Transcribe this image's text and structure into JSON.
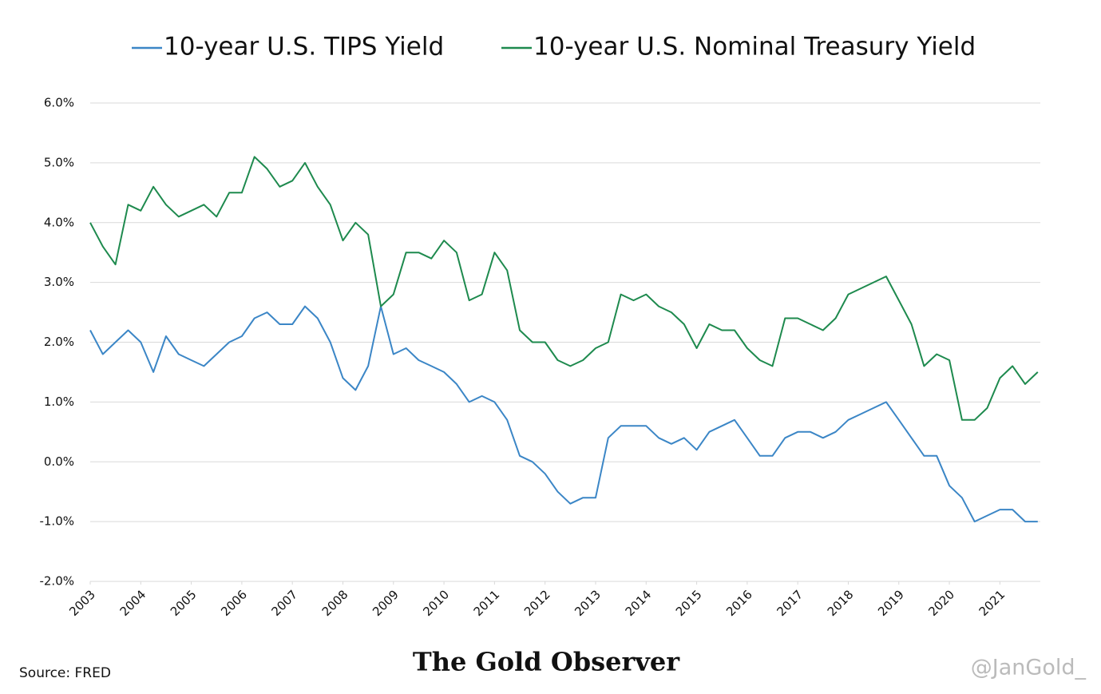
{
  "chart_data": {
    "type": "line",
    "x": [
      2003,
      2003.25,
      2003.5,
      2003.75,
      2004,
      2004.25,
      2004.5,
      2004.75,
      2005,
      2005.25,
      2005.5,
      2005.75,
      2006,
      2006.25,
      2006.5,
      2006.75,
      2007,
      2007.25,
      2007.5,
      2007.75,
      2008,
      2008.25,
      2008.5,
      2008.75,
      2009,
      2009.25,
      2009.5,
      2009.75,
      2010,
      2010.25,
      2010.5,
      2010.75,
      2011,
      2011.25,
      2011.5,
      2011.75,
      2012,
      2012.25,
      2012.5,
      2012.75,
      2013,
      2013.25,
      2013.5,
      2013.75,
      2014,
      2014.25,
      2014.5,
      2014.75,
      2015,
      2015.25,
      2015.5,
      2015.75,
      2016,
      2016.25,
      2016.5,
      2016.75,
      2017,
      2017.25,
      2017.5,
      2017.75,
      2018,
      2018.25,
      2018.5,
      2018.75,
      2019,
      2019.25,
      2019.5,
      2019.75,
      2020,
      2020.25,
      2020.5,
      2020.75,
      2021,
      2021.25,
      2021.5,
      2021.75
    ],
    "series": [
      {
        "name": "10-year U.S. TIPS Yield",
        "color": "#3b86c6",
        "values": [
          2.2,
          1.8,
          2.0,
          2.2,
          2.0,
          1.5,
          2.1,
          1.8,
          1.7,
          1.6,
          1.8,
          2.0,
          2.1,
          2.4,
          2.5,
          2.3,
          2.3,
          2.6,
          2.4,
          2.0,
          1.4,
          1.2,
          1.6,
          2.6,
          1.8,
          1.9,
          1.7,
          1.6,
          1.5,
          1.3,
          1.0,
          1.1,
          1.0,
          0.7,
          0.1,
          0.0,
          -0.2,
          -0.5,
          -0.7,
          -0.6,
          -0.6,
          0.4,
          0.6,
          0.6,
          0.6,
          0.4,
          0.3,
          0.4,
          0.2,
          0.5,
          0.6,
          0.7,
          0.4,
          0.1,
          0.1,
          0.4,
          0.5,
          0.5,
          0.4,
          0.5,
          0.7,
          0.8,
          0.9,
          1.0,
          0.7,
          0.4,
          0.1,
          0.1,
          -0.4,
          -0.6,
          -1.0,
          -0.9,
          -0.8,
          -0.8,
          -1.0,
          -1.0
        ]
      },
      {
        "name": "10-year U.S. Nominal Treasury Yield",
        "color": "#1e8a4e",
        "values": [
          4.0,
          3.6,
          3.3,
          4.3,
          4.2,
          4.6,
          4.3,
          4.1,
          4.2,
          4.3,
          4.1,
          4.5,
          4.5,
          5.1,
          4.9,
          4.6,
          4.7,
          5.0,
          4.6,
          4.3,
          3.7,
          4.0,
          3.8,
          2.6,
          2.8,
          3.5,
          3.5,
          3.4,
          3.7,
          3.5,
          2.7,
          2.8,
          3.5,
          3.2,
          2.2,
          2.0,
          2.0,
          1.7,
          1.6,
          1.7,
          1.9,
          2.0,
          2.8,
          2.7,
          2.8,
          2.6,
          2.5,
          2.3,
          1.9,
          2.3,
          2.2,
          2.2,
          1.9,
          1.7,
          1.6,
          2.4,
          2.4,
          2.3,
          2.2,
          2.4,
          2.8,
          2.9,
          3.0,
          3.1,
          2.7,
          2.3,
          1.6,
          1.8,
          1.7,
          0.7,
          0.7,
          0.9,
          1.4,
          1.6,
          1.3,
          1.5
        ]
      }
    ],
    "xlim": [
      2003,
      2021.8
    ],
    "xticks": [
      2003,
      2004,
      2005,
      2006,
      2007,
      2008,
      2009,
      2010,
      2011,
      2012,
      2013,
      2014,
      2015,
      2016,
      2017,
      2018,
      2019,
      2020,
      2021
    ],
    "ylim": [
      -2,
      6
    ],
    "yticks": [
      {
        "value": -2,
        "label": "-2.0%"
      },
      {
        "value": -1,
        "label": "-1.0%"
      },
      {
        "value": 0,
        "label": "0.0%"
      },
      {
        "value": 1,
        "label": "1.0%"
      },
      {
        "value": 2,
        "label": "2.0%"
      },
      {
        "value": 3,
        "label": "3.0%"
      },
      {
        "value": 4,
        "label": "4.0%"
      },
      {
        "value": 5,
        "label": "5.0%"
      },
      {
        "value": 6,
        "label": "6.0%"
      }
    ],
    "grid": true,
    "legend": "top",
    "source": "Source: FRED",
    "brand": "The Gold Observer",
    "handle": "@JanGold_"
  }
}
